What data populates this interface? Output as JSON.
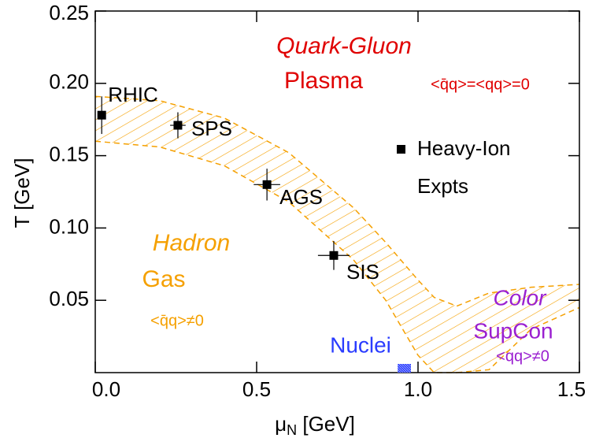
{
  "chart_data": {
    "type": "scatter",
    "xlabel": {
      "symbol": "μ",
      "sub": "N",
      "unit": " [GeV]"
    },
    "ylabel": "T [GeV]",
    "xlim": [
      0,
      1.5
    ],
    "ylim": [
      0,
      0.25
    ],
    "xticks": [
      {
        "value": 0,
        "label": "0.0"
      },
      {
        "value": 0.5,
        "label": "0.5"
      },
      {
        "value": 1,
        "label": "1.0"
      },
      {
        "value": 1.5,
        "label": "1.5"
      }
    ],
    "yticks": [
      {
        "value": 0.05,
        "label": "0.05"
      },
      {
        "value": 0.1,
        "label": "0.10"
      },
      {
        "value": 0.15,
        "label": "0.15"
      },
      {
        "value": 0.2,
        "label": "0.20"
      },
      {
        "value": 0.25,
        "label": "0.25"
      }
    ],
    "points": {
      "color": "#000000",
      "labels": [
        "RHIC",
        "SPS",
        "AGS",
        "SIS"
      ],
      "x": [
        0.02,
        0.256,
        0.532,
        0.739
      ],
      "y": [
        0.178,
        0.171,
        0.13,
        0.081
      ],
      "xerr": [
        0,
        0.024,
        0.041,
        0.049
      ],
      "yerr": [
        0.013,
        0.009,
        0.011,
        0.01
      ]
    },
    "legend": [
      "Heavy-Ion",
      "Expts"
    ],
    "bands": [
      {
        "color": "#f5a000",
        "x": [
          0,
          0.2,
          0.4,
          0.6,
          0.8,
          0.9,
          1.0,
          1.05,
          1.12
        ],
        "upper": [
          0.191,
          0.188,
          0.176,
          0.152,
          0.114,
          0.09,
          0.064,
          0.052,
          0.046
        ],
        "lower": [
          0.16,
          0.156,
          0.143,
          0.118,
          0.078,
          0.05,
          0.012,
          0,
          0
        ]
      },
      {
        "color": "#f5a000",
        "x": [
          1.12,
          1.22,
          1.35,
          1.5
        ],
        "upper": [
          0.046,
          0.055,
          0.059,
          0.061
        ],
        "lower": [
          0,
          0.002,
          0.03,
          0.045
        ]
      }
    ],
    "nuclei": {
      "x": [
        0.937,
        0.978
      ],
      "y": [
        0,
        0.006
      ],
      "color": "#2a3cff"
    },
    "annotations": {
      "qgp": [
        "Quark-Gluon",
        "Plasma",
        "<q̄q>=<qq>=0"
      ],
      "hadron": [
        "Hadron",
        "Gas",
        "<q̄q>≠0"
      ],
      "csc": [
        "Color",
        "SupCon",
        "<qq>≠0"
      ],
      "nuclei": "Nuclei"
    }
  }
}
